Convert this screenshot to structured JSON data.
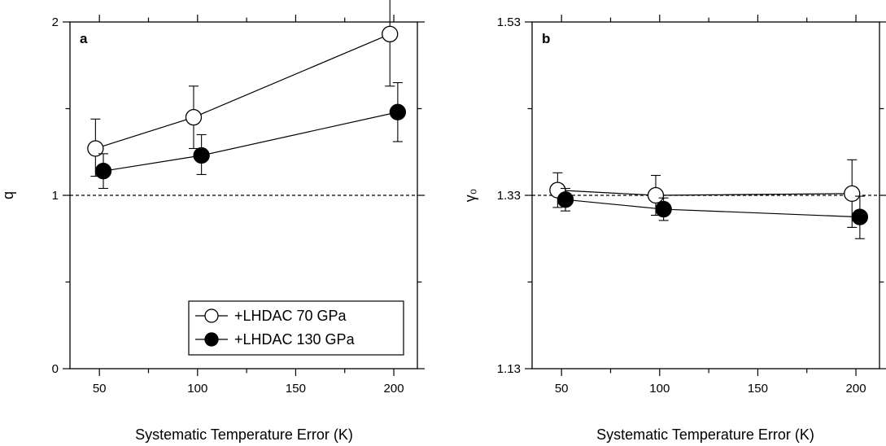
{
  "chart_data": [
    {
      "type": "line",
      "panel_label": "a",
      "xlabel": "Systematic Temperature Error (K)",
      "ylabel": "q",
      "xlim": [
        35,
        212
      ],
      "ylim": [
        0,
        2
      ],
      "x_ticks": [
        50,
        100,
        150,
        200
      ],
      "y_ticks": [
        0,
        1,
        2
      ],
      "reference_line": 1,
      "legend_position": "bottom-right",
      "series": [
        {
          "name": "+LHDAC 70 GPa",
          "marker": "open-circle",
          "x": [
            48,
            98,
            198
          ],
          "y": [
            1.27,
            1.45,
            1.93
          ],
          "err_upper": [
            0.17,
            0.18,
            0.3
          ],
          "err_lower": [
            0.16,
            0.18,
            0.3
          ]
        },
        {
          "name": "+LHDAC 130 GPa",
          "marker": "filled-circle",
          "x": [
            52,
            102,
            202
          ],
          "y": [
            1.14,
            1.23,
            1.48
          ],
          "err_upper": [
            0.1,
            0.12,
            0.17
          ],
          "err_lower": [
            0.1,
            0.11,
            0.17
          ]
        }
      ]
    },
    {
      "type": "line",
      "panel_label": "b",
      "xlabel": "Systematic Temperature Error (K)",
      "ylabel": "γ₀",
      "xlim": [
        35,
        212
      ],
      "ylim": [
        1.13,
        1.53
      ],
      "x_ticks": [
        50,
        100,
        150,
        200
      ],
      "y_ticks": [
        1.13,
        1.33,
        1.53
      ],
      "y_tick_labels": [
        "1.13",
        "1.33",
        "1.53"
      ],
      "reference_line": 1.33,
      "series": [
        {
          "name": "+LHDAC 70 GPa",
          "marker": "open-circle",
          "x": [
            48,
            98,
            198
          ],
          "y": [
            1.336,
            1.33,
            1.332
          ],
          "err_upper": [
            0.02,
            0.023,
            0.039
          ],
          "err_lower": [
            0.02,
            0.023,
            0.039
          ]
        },
        {
          "name": "+LHDAC 130 GPa",
          "marker": "filled-circle",
          "x": [
            52,
            102,
            202
          ],
          "y": [
            1.325,
            1.314,
            1.305
          ],
          "err_upper": [
            0.013,
            0.013,
            0.024
          ],
          "err_lower": [
            0.013,
            0.013,
            0.025
          ]
        }
      ]
    }
  ]
}
